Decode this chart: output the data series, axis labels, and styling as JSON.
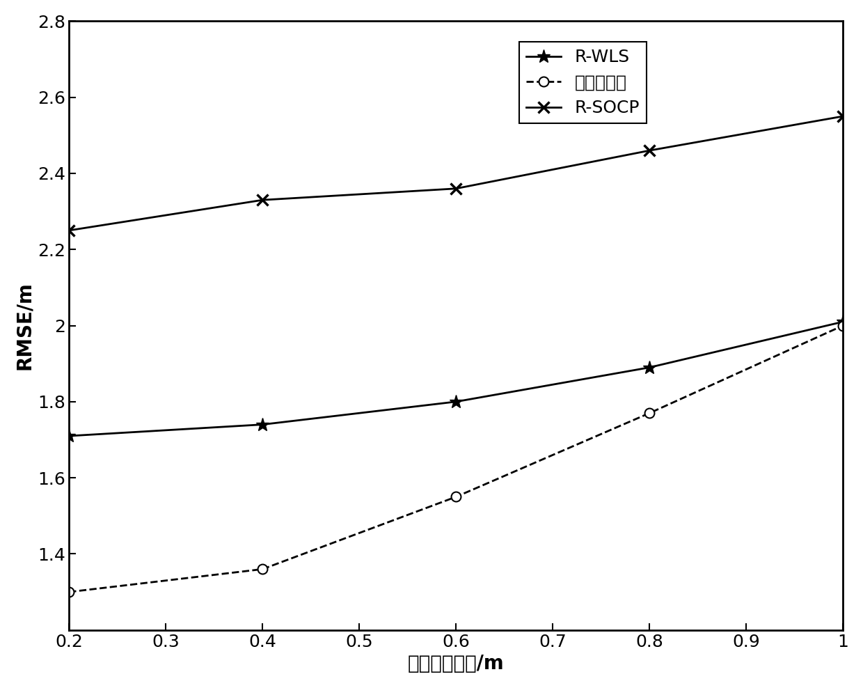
{
  "x": [
    0.2,
    0.4,
    0.6,
    0.8,
    1.0
  ],
  "r_wls": [
    1.71,
    1.74,
    1.8,
    1.89,
    2.01
  ],
  "ben_faming": [
    1.3,
    1.36,
    1.55,
    1.77,
    2.0
  ],
  "r_socp": [
    2.25,
    2.33,
    2.36,
    2.46,
    2.55
  ],
  "xlabel": "误差的标准差/m",
  "ylabel": "RMSE/m",
  "xlim": [
    0.2,
    1.0
  ],
  "ylim": [
    1.2,
    2.8
  ],
  "yticks": [
    1.4,
    1.6,
    1.8,
    2.0,
    2.2,
    2.4,
    2.6,
    2.8
  ],
  "xticks": [
    0.2,
    0.3,
    0.4,
    0.5,
    0.6,
    0.7,
    0.8,
    0.9,
    1.0
  ],
  "xticklabels": [
    "0.2",
    "0.3",
    "0.4",
    "0.5",
    "0.6",
    "0.7",
    "0.8",
    "0.9",
    "1"
  ],
  "yticklabels": [
    "1.4",
    "1.6",
    "1.8",
    "2",
    "2.2",
    "2.4",
    "2.6",
    "2.8"
  ],
  "legend_rwls": "R-WLS",
  "legend_benfaming": "本发明方法",
  "legend_rsocp": "R-SOCP",
  "line_color": "#000000",
  "bg_color": "#ffffff",
  "linewidth": 2.0,
  "fontsize_tick": 18,
  "fontsize_label": 20,
  "fontsize_legend": 18
}
